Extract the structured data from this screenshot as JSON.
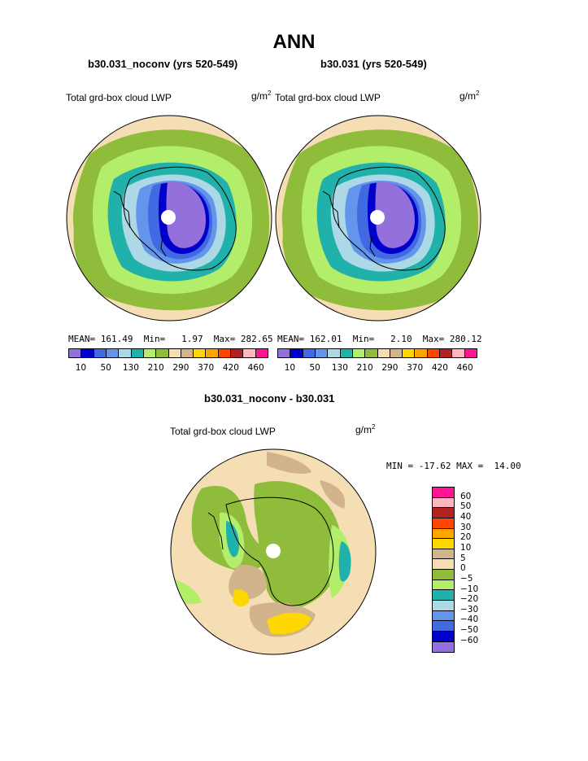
{
  "title": "ANN",
  "panels": [
    {
      "case_title": "b30.031_noconv (yrs 520-549)",
      "variable": "Total grd-box cloud LWP",
      "units_base": "g/m",
      "units_exp": "2",
      "stats": "MEAN= 161.49  Min=   1.97  Max= 282.65"
    },
    {
      "case_title": "b30.031 (yrs 520-549)",
      "variable": "Total grd-box cloud LWP",
      "units_base": "g/m",
      "units_exp": "2",
      "stats": "MEAN= 162.01  Min=   2.10  Max= 280.12"
    }
  ],
  "colorbar_top": {
    "colors": [
      "#9370db",
      "#0000cd",
      "#4169e1",
      "#6495ed",
      "#add8e6",
      "#20b2aa",
      "#b3ee6a",
      "#8fbc3a",
      "#f5deb3",
      "#d2b48c",
      "#ffd700",
      "#ffa500",
      "#ff4500",
      "#b22222",
      "#ffb6c1",
      "#ff1493"
    ],
    "labels": [
      "10",
      "50",
      "130",
      "210",
      "290",
      "370",
      "420",
      "460"
    ]
  },
  "difference": {
    "title": "b30.031_noconv - b30.031",
    "variable": "Total grd-box cloud LWP",
    "units_base": "g/m",
    "units_exp": "2",
    "stats": "MIN = -17.62 MAX =  14.00",
    "colors": [
      "#ff1493",
      "#ffb6c1",
      "#b22222",
      "#ff4500",
      "#ffa500",
      "#ffd700",
      "#d2b48c",
      "#f5deb3",
      "#8fbc3a",
      "#b3ee6a",
      "#20b2aa",
      "#add8e6",
      "#6495ed",
      "#4169e1",
      "#0000cd",
      "#9370db"
    ],
    "labels": [
      "60",
      "50",
      "40",
      "30",
      "20",
      "10",
      "5",
      "0",
      "−5",
      "−10",
      "−20",
      "−30",
      "−40",
      "−50",
      "−60"
    ]
  }
}
